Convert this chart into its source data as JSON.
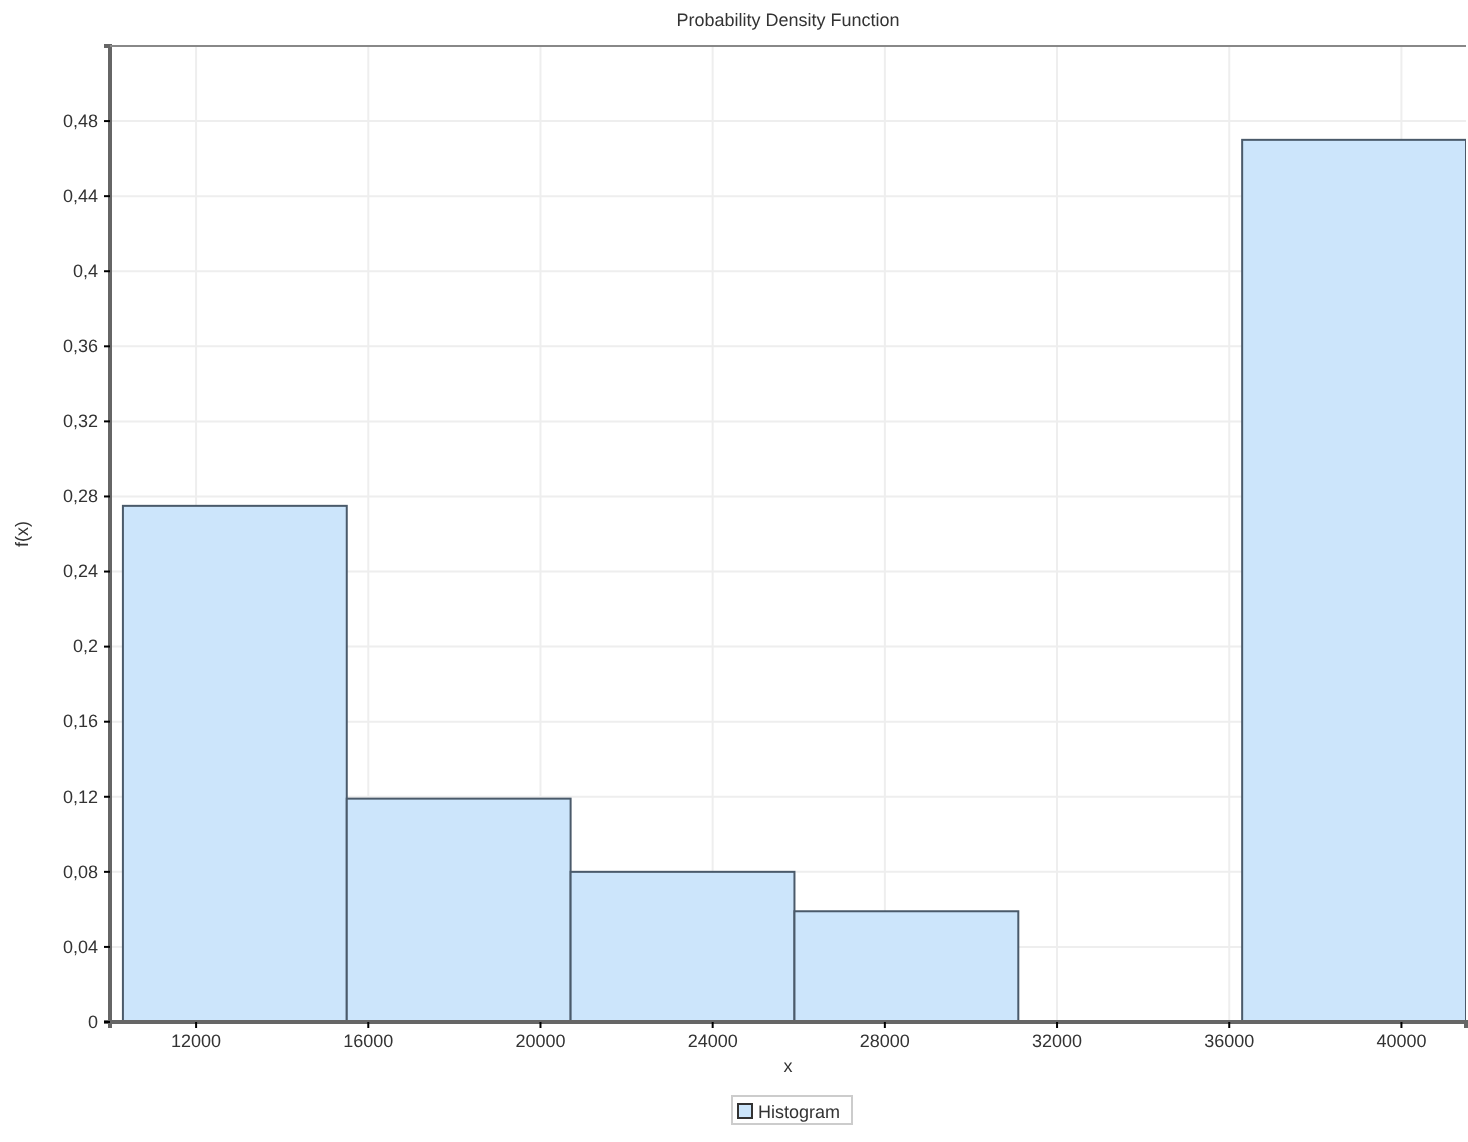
{
  "chart_data": {
    "type": "histogram",
    "title": "Probability Density Function",
    "xlabel": "x",
    "ylabel": "f(x)",
    "bins": [
      10300,
      15500,
      20700,
      25900,
      31100,
      36300,
      41500
    ],
    "series": [
      {
        "name": "Histogram",
        "color": "#cce5fb",
        "values": [
          0.275,
          0.119,
          0.08,
          0.059,
          0,
          0.47
        ]
      }
    ],
    "xlim": [
      10000,
      41500
    ],
    "xticks": [
      12000,
      16000,
      20000,
      24000,
      28000,
      32000,
      36000,
      40000
    ],
    "ylim": [
      0,
      0.52
    ],
    "yticks": [
      0,
      {
        "value": 0.04,
        "label": "0,04"
      },
      {
        "value": 0.08,
        "label": "0,08"
      },
      {
        "value": 0.12,
        "label": "0,12"
      },
      {
        "value": 0.16,
        "label": "0,16"
      },
      {
        "value": 0.2,
        "label": "0,2"
      },
      {
        "value": 0.24,
        "label": "0,24"
      },
      {
        "value": 0.28,
        "label": "0,28"
      },
      {
        "value": 0.32,
        "label": "0,32"
      },
      {
        "value": 0.36,
        "label": "0,36"
      },
      {
        "value": 0.4,
        "label": "0,4"
      },
      {
        "value": 0.44,
        "label": "0,44"
      },
      {
        "value": 0.48,
        "label": "0,48"
      }
    ],
    "grid": true,
    "legend": "bottom"
  }
}
